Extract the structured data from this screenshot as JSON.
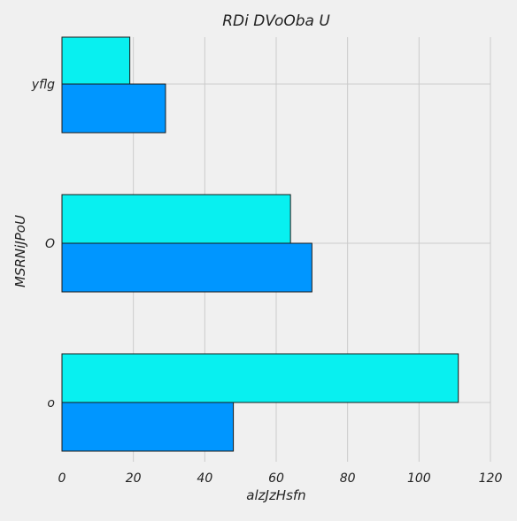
{
  "chart_data": {
    "type": "bar",
    "orientation": "horizontal",
    "title": "RDi DVoOba U",
    "xlabel": "alzJzHsfn",
    "ylabel": "MSRNiJPoU",
    "categories": [
      "o",
      "O",
      "yflg"
    ],
    "series": [
      {
        "values": [
          48,
          70,
          29
        ],
        "color": "#0096ff"
      },
      {
        "values": [
          111,
          64,
          19
        ],
        "color": "#08f0f0"
      }
    ],
    "xlim": [
      0,
      120
    ],
    "xticks": [
      0,
      20,
      40,
      60,
      80,
      100,
      120
    ],
    "grid": true,
    "legend": "none"
  }
}
